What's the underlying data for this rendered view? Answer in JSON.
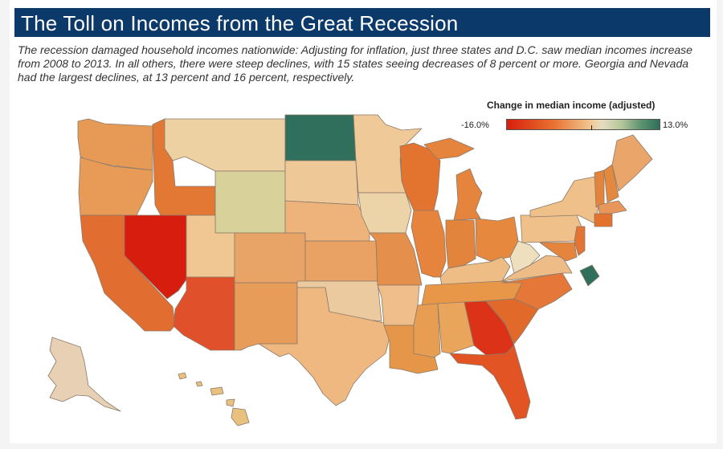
{
  "title": "The Toll on Incomes from the Great Recession",
  "subtitle": "The recession damaged household incomes nationwide: Adjusting for inflation, just three states and D.C. saw median incomes increase from 2008 to 2013. In all others, there were steep declines, with 15 states seeing decreases of 8 percent or more. Georgia and Nevada had the largest declines, at 13 percent and 16 percent, respectively.",
  "legend": {
    "title": "Change in median income (adjusted)",
    "min_label": "-16.0%",
    "max_label": "13.0%",
    "min_value": -16.0,
    "max_value": 13.0,
    "zero_value": 0
  },
  "colors": {
    "title_bar": "#0b3a6a",
    "strong_decline": "#d71e0e",
    "moderate_decline": "#e8702f",
    "mild_decline": "#f0c792",
    "neutral": "#e6dcc1",
    "increase": "#2f6f5c"
  },
  "highlighted_states": {
    "largest_declines": [
      "Nevada",
      "Georgia"
    ],
    "largest_decline_values": [
      -16,
      -13
    ],
    "increases": [
      "North Dakota",
      "D.C.",
      "Wyoming"
    ]
  }
}
